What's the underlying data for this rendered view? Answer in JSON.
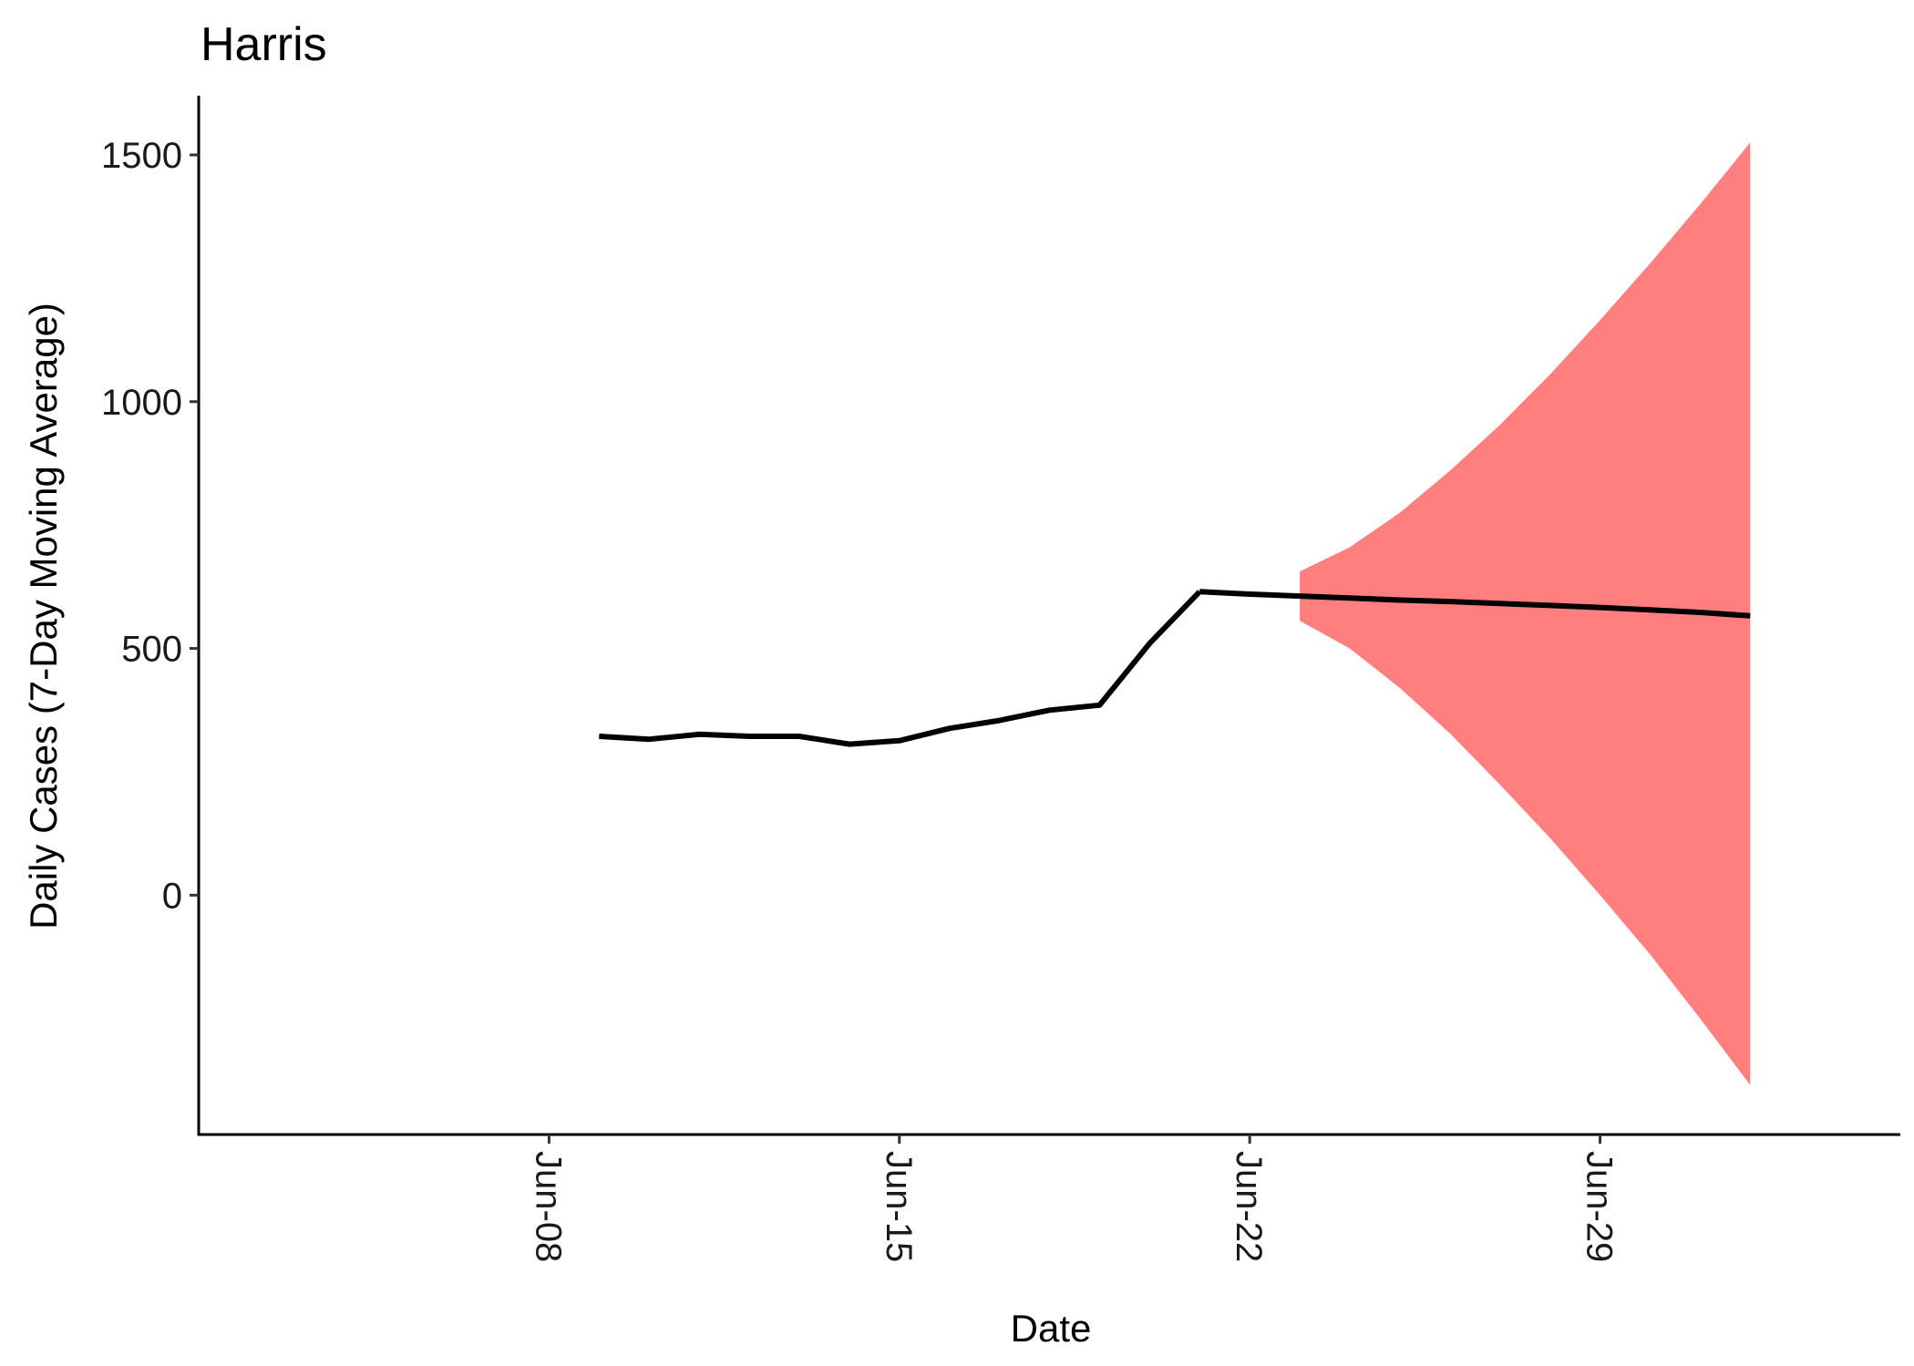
{
  "chart_data": {
    "type": "line",
    "title": "Harris",
    "xlabel": "Date",
    "ylabel": "Daily Cases (7-Day Moving Average)",
    "x_ticks": [
      "Jun-08",
      "Jun-15",
      "Jun-22",
      "Jun-29"
    ],
    "y_ticks": [
      0,
      500,
      1000,
      1500
    ],
    "ylim": [
      -485,
      1620
    ],
    "xlim": [
      "2020-06-01",
      "2020-07-05"
    ],
    "grid": false,
    "legend": "none",
    "series": [
      {
        "x": [
          "2020-06-09",
          "2020-06-10",
          "2020-06-11",
          "2020-06-12",
          "2020-06-13",
          "2020-06-14",
          "2020-06-15",
          "2020-06-16",
          "2020-06-17",
          "2020-06-18",
          "2020-06-19",
          "2020-06-20",
          "2020-06-21"
        ],
        "y": [
          322,
          316,
          326,
          322,
          322,
          306,
          313,
          338,
          354,
          375,
          385,
          510,
          615
        ],
        "color": "#000000"
      },
      {
        "x": [
          "2020-06-21",
          "2020-06-22",
          "2020-06-23",
          "2020-06-24",
          "2020-06-25",
          "2020-06-26",
          "2020-06-27",
          "2020-06-28",
          "2020-06-29",
          "2020-06-30",
          "2020-07-01",
          "2020-07-02"
        ],
        "y": [
          615,
          610,
          606,
          602,
          598,
          595,
          591,
          587,
          583,
          578,
          573,
          566
        ],
        "color": "#000000"
      }
    ],
    "band": {
      "x": [
        "2020-06-23",
        "2020-06-24",
        "2020-06-25",
        "2020-06-26",
        "2020-06-27",
        "2020-06-28",
        "2020-06-29",
        "2020-06-30",
        "2020-07-01",
        "2020-07-02"
      ],
      "lower": [
        556,
        500,
        420,
        328,
        224,
        116,
        0,
        -120,
        -250,
        -385
      ],
      "upper": [
        656,
        705,
        775,
        860,
        953,
        1055,
        1165,
        1280,
        1400,
        1525
      ],
      "color": "#ff7f7f"
    }
  }
}
